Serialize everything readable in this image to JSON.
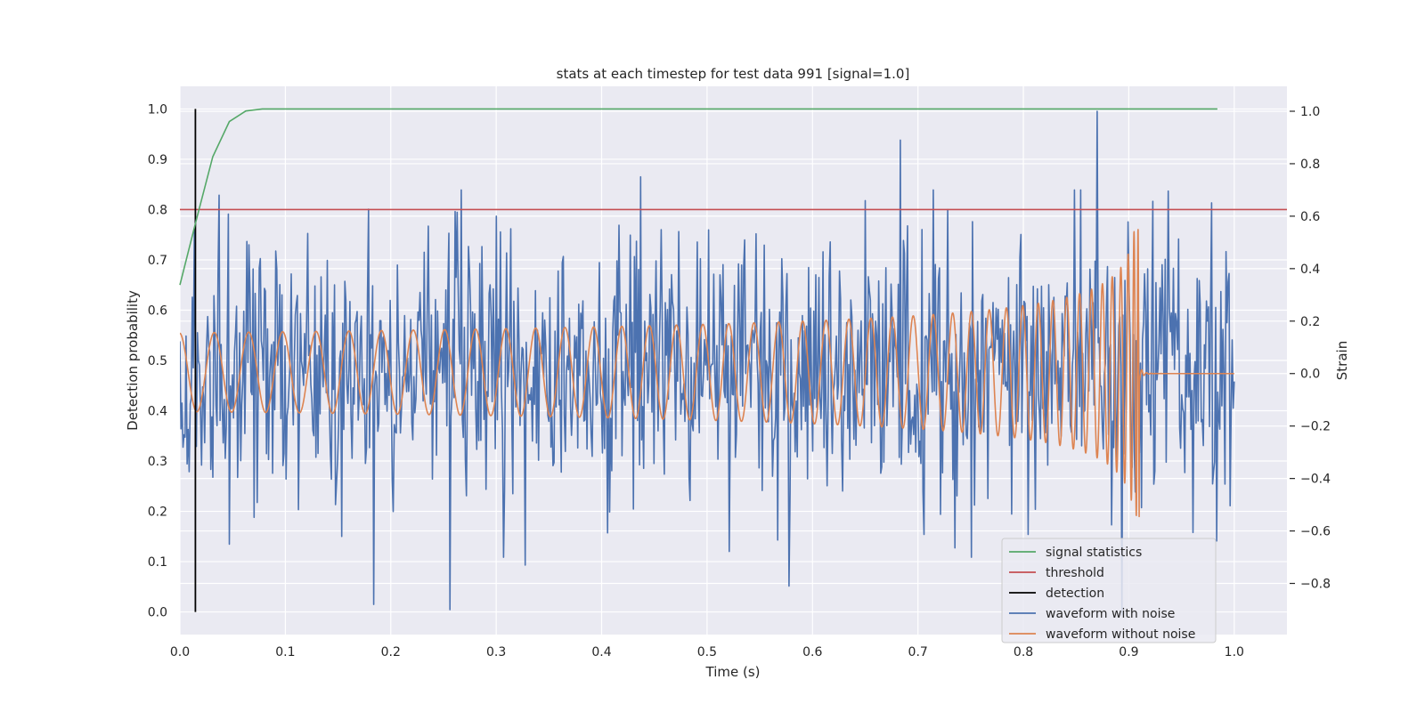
{
  "chart_data": {
    "type": "line",
    "title": "stats at each timestep for test data 991 [signal=1.0]",
    "xlabel": "Time (s)",
    "ylabel": "Detection probability",
    "y2label": "Strain",
    "xlim": [
      0.0,
      1.05
    ],
    "ylim": [
      -0.045,
      1.045
    ],
    "y2lim": [
      -0.995,
      1.095
    ],
    "xticks": [
      0.0,
      0.1,
      0.2,
      0.3,
      0.4,
      0.5,
      0.6,
      0.7,
      0.8,
      0.9,
      1.0
    ],
    "yticks": [
      0.0,
      0.1,
      0.2,
      0.3,
      0.4,
      0.5,
      0.6,
      0.7,
      0.8,
      0.9,
      1.0
    ],
    "y2ticks": [
      -0.8,
      -0.6,
      -0.4,
      -0.2,
      0.0,
      0.2,
      0.4,
      0.6,
      0.8,
      1.0
    ],
    "xtick_labels": [
      "0.0",
      "0.1",
      "0.2",
      "0.3",
      "0.4",
      "0.5",
      "0.6",
      "0.7",
      "0.8",
      "0.9",
      "1.0"
    ],
    "ytick_labels": [
      "0.0",
      "0.1",
      "0.2",
      "0.3",
      "0.4",
      "0.5",
      "0.6",
      "0.7",
      "0.8",
      "0.9",
      "1.0"
    ],
    "y2tick_labels": [
      "−0.8",
      "−0.6",
      "−0.4",
      "−0.2",
      "0.0",
      "0.2",
      "0.4",
      "0.6",
      "0.8",
      "1.0"
    ],
    "grid": true,
    "legend_position": "lower-right",
    "colors": {
      "signal": "#55a868",
      "threshold": "#c44e52",
      "detection": "#000000",
      "noisy": "#4c72b0",
      "clean": "#dd8452",
      "background": "#eaeaf2",
      "grid": "#ffffff"
    },
    "series": [
      {
        "name": "signal statistics",
        "axis": "left",
        "x": [
          0.0,
          0.0156,
          0.0312,
          0.0469,
          0.0625,
          0.0781,
          0.1,
          0.2,
          0.4,
          0.6,
          0.8,
          0.984
        ],
        "y": [
          0.65,
          0.78,
          0.905,
          0.975,
          0.996,
          1.0,
          1.0,
          1.0,
          1.0,
          1.0,
          1.0,
          1.0
        ]
      },
      {
        "name": "threshold",
        "axis": "left",
        "x": [
          0.0,
          1.05
        ],
        "y": [
          0.8,
          0.8
        ]
      },
      {
        "name": "detection",
        "axis": "left",
        "x": [
          0.0147,
          0.0147
        ],
        "y": [
          0.0,
          1.0
        ]
      },
      {
        "name": "waveform with noise",
        "axis": "right",
        "x_range": [
          0.0,
          1.0
        ],
        "samples": 1024,
        "std": 0.25,
        "peaks": [
          [
            0.87,
            1.0
          ],
          [
            0.683,
            0.89
          ],
          [
            0.437,
            0.75
          ],
          [
            0.893,
            -0.92
          ],
          [
            0.256,
            -0.9
          ],
          [
            0.184,
            -0.88
          ],
          [
            0.578,
            -0.81
          ],
          [
            0.327,
            -0.73
          ],
          [
            0.037,
            0.68
          ],
          [
            0.3,
            0.6
          ]
        ]
      },
      {
        "name": "waveform without noise",
        "axis": "right",
        "merger_time": 0.91,
        "x_end": 1.0
      }
    ]
  }
}
